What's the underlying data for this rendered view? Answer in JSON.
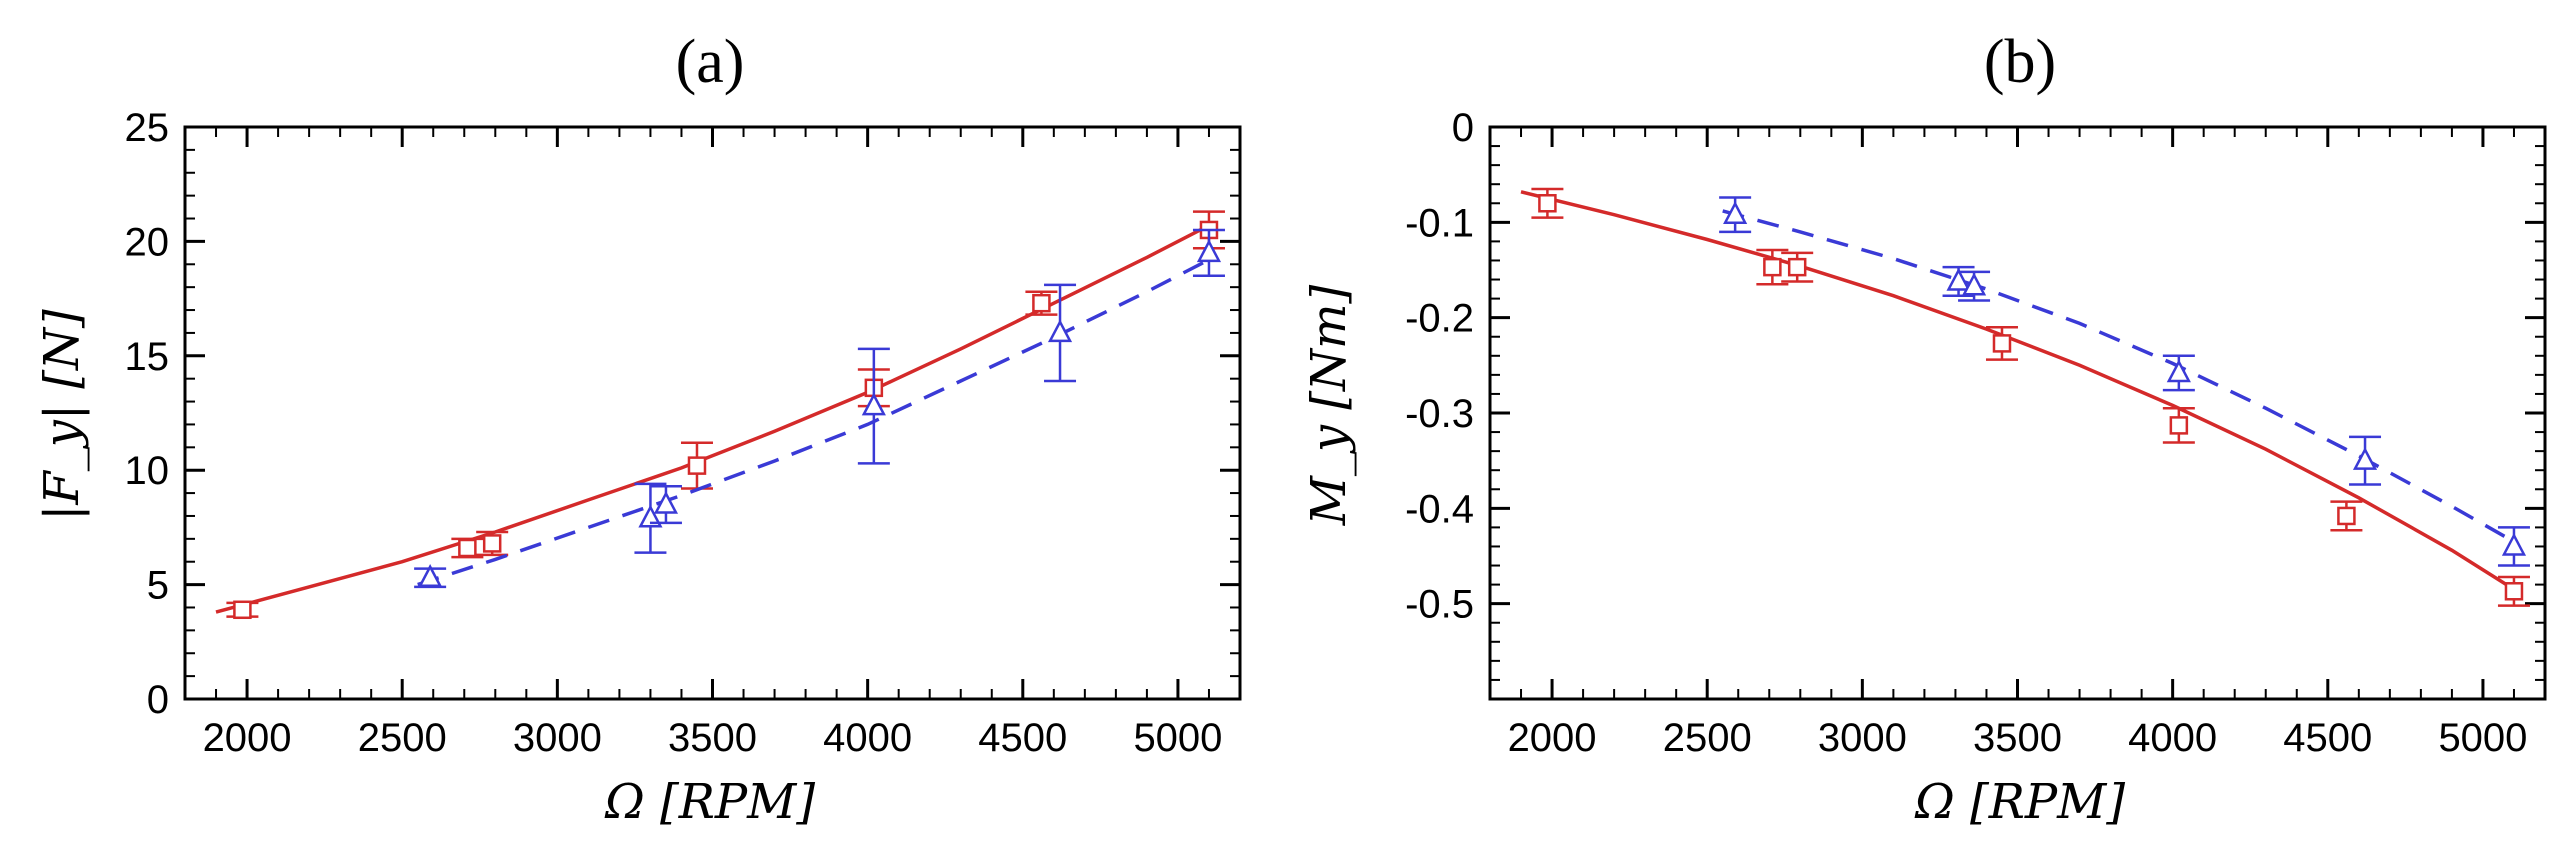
{
  "chart_data": [
    {
      "type": "line",
      "panel_title": "(a)",
      "xlabel": "Ω [RPM]",
      "ylabel": "|F_y| [N]",
      "xlim": [
        1800,
        5200
      ],
      "ylim": [
        0,
        25
      ],
      "xticks": [
        2000,
        2500,
        3000,
        3500,
        4000,
        4500,
        5000
      ],
      "yticks": [
        0,
        5,
        10,
        15,
        20,
        25
      ],
      "x_minor_step": 100,
      "y_minor_step": 1,
      "series": [
        {
          "name": "red-fit",
          "color": "#d42a2a",
          "style": "solid",
          "line_x": [
            1900,
            2200,
            2500,
            2800,
            3100,
            3400,
            3700,
            4000,
            4300,
            4600,
            4900,
            5100
          ],
          "line_y": [
            3.8,
            4.9,
            6.0,
            7.3,
            8.7,
            10.1,
            11.7,
            13.4,
            15.3,
            17.3,
            19.3,
            20.7
          ],
          "marker": "square",
          "points": [
            {
              "x": 1985,
              "y": 3.9,
              "err": 0.3
            },
            {
              "x": 2710,
              "y": 6.6,
              "err": 0.4
            },
            {
              "x": 2790,
              "y": 6.8,
              "err": 0.5
            },
            {
              "x": 3450,
              "y": 10.2,
              "err": 1.0
            },
            {
              "x": 4020,
              "y": 13.6,
              "err": 0.8
            },
            {
              "x": 4560,
              "y": 17.3,
              "err": 0.5
            },
            {
              "x": 5100,
              "y": 20.5,
              "err": 0.8
            }
          ]
        },
        {
          "name": "blue-fit",
          "color": "#3a3ad6",
          "style": "dashed",
          "line_x": [
            2550,
            2800,
            3100,
            3400,
            3700,
            4000,
            4300,
            4600,
            4900,
            5100
          ],
          "line_y": [
            5.0,
            6.1,
            7.5,
            8.9,
            10.4,
            12.0,
            13.9,
            15.8,
            17.8,
            19.2
          ],
          "marker": "triangle",
          "points": [
            {
              "x": 2590,
              "y": 5.3,
              "err": 0.4
            },
            {
              "x": 3300,
              "y": 7.9,
              "err": 1.5
            },
            {
              "x": 3350,
              "y": 8.5,
              "err": 0.8
            },
            {
              "x": 4020,
              "y": 12.8,
              "err": 2.5
            },
            {
              "x": 4620,
              "y": 16.0,
              "err": 2.1
            },
            {
              "x": 5100,
              "y": 19.5,
              "err": 1.0
            }
          ]
        }
      ]
    },
    {
      "type": "line",
      "panel_title": "(b)",
      "xlabel": "Ω [RPM]",
      "ylabel": "M_y [Nm]",
      "xlim": [
        1800,
        5200
      ],
      "ylim": [
        -0.6,
        0
      ],
      "xticks": [
        2000,
        2500,
        3000,
        3500,
        4000,
        4500,
        5000
      ],
      "yticks": [
        0,
        -0.1,
        -0.2,
        -0.3,
        -0.4,
        -0.5
      ],
      "x_minor_step": 100,
      "y_minor_step": 0.02,
      "series": [
        {
          "name": "red-fit",
          "color": "#d42a2a",
          "style": "solid",
          "line_x": [
            1900,
            2200,
            2500,
            2800,
            3100,
            3400,
            3700,
            4000,
            4300,
            4600,
            4900,
            5100
          ],
          "line_y": [
            -0.068,
            -0.092,
            -0.118,
            -0.146,
            -0.177,
            -0.212,
            -0.25,
            -0.292,
            -0.338,
            -0.389,
            -0.444,
            -0.485
          ],
          "marker": "square",
          "points": [
            {
              "x": 1985,
              "y": -0.08,
              "err": 0.015
            },
            {
              "x": 2710,
              "y": -0.147,
              "err": 0.018
            },
            {
              "x": 2790,
              "y": -0.147,
              "err": 0.015
            },
            {
              "x": 3450,
              "y": -0.227,
              "err": 0.017
            },
            {
              "x": 4020,
              "y": -0.313,
              "err": 0.018
            },
            {
              "x": 4560,
              "y": -0.408,
              "err": 0.015
            },
            {
              "x": 5100,
              "y": -0.487,
              "err": 0.015
            }
          ]
        },
        {
          "name": "blue-fit",
          "color": "#3a3ad6",
          "style": "dashed",
          "line_x": [
            2550,
            2800,
            3100,
            3400,
            3700,
            4000,
            4300,
            4600,
            4900,
            5100
          ],
          "line_y": [
            -0.088,
            -0.11,
            -0.138,
            -0.17,
            -0.206,
            -0.248,
            -0.295,
            -0.345,
            -0.398,
            -0.435
          ],
          "marker": "triangle",
          "points": [
            {
              "x": 2590,
              "y": -0.092,
              "err": 0.018
            },
            {
              "x": 3310,
              "y": -0.162,
              "err": 0.015
            },
            {
              "x": 3360,
              "y": -0.167,
              "err": 0.015
            },
            {
              "x": 4020,
              "y": -0.258,
              "err": 0.018
            },
            {
              "x": 4620,
              "y": -0.35,
              "err": 0.025
            },
            {
              "x": 5100,
              "y": -0.44,
              "err": 0.02
            }
          ]
        }
      ]
    }
  ]
}
